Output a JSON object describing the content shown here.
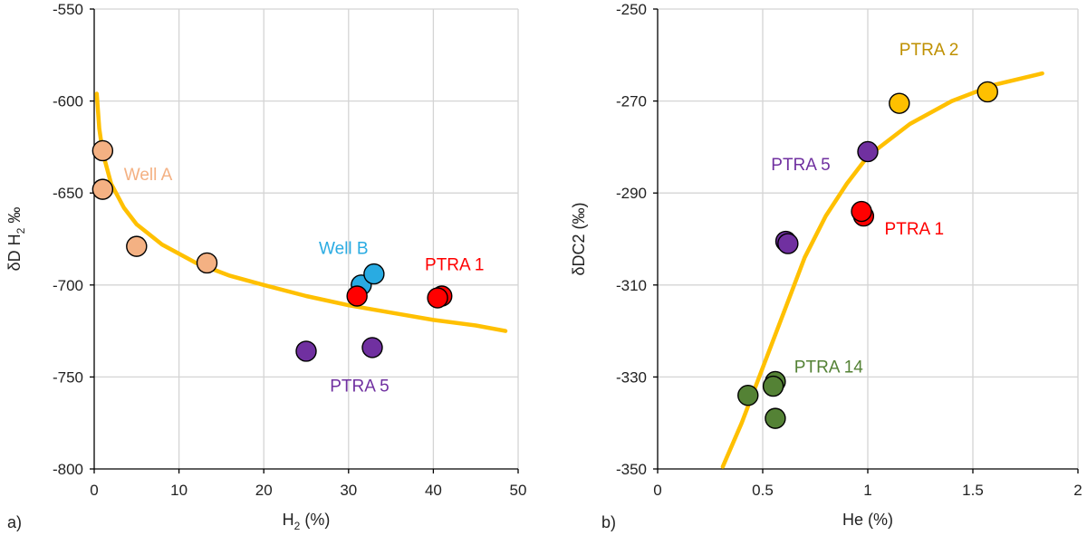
{
  "chart_data": [
    {
      "type": "scatter",
      "panel_label": "a)",
      "xlabel": "H",
      "xlabel_sub": "2",
      "xlabel_suffix": " (%)",
      "ylabel": "δD H",
      "ylabel_sub": "2",
      "ylabel_suffix": " ‰",
      "xlim": [
        0,
        50
      ],
      "ylim": [
        -800,
        -550
      ],
      "xticks": [
        0,
        10,
        20,
        30,
        40,
        50
      ],
      "yticks": [
        -800,
        -750,
        -700,
        -650,
        -600,
        -550
      ],
      "grid": true,
      "series": [
        {
          "name": "Well A",
          "color": "#f4b183",
          "points": [
            [
              1.0,
              -627
            ],
            [
              1.0,
              -648
            ],
            [
              5.0,
              -679
            ],
            [
              13.3,
              -688
            ]
          ]
        },
        {
          "name": "Well B",
          "color": "#29abe2",
          "points": [
            [
              31.5,
              -700
            ],
            [
              33.0,
              -694
            ]
          ]
        },
        {
          "name": "PTRA 1",
          "color": "#ff0000",
          "points": [
            [
              31.0,
              -706
            ],
            [
              41.0,
              -706
            ],
            [
              40.5,
              -707
            ]
          ]
        },
        {
          "name": "PTRA 5",
          "color": "#7030a0",
          "points": [
            [
              25.0,
              -736
            ],
            [
              32.8,
              -734
            ]
          ]
        }
      ],
      "fit_curve": {
        "color": "#ffc000",
        "points": [
          [
            0.3,
            -596
          ],
          [
            0.6,
            -615
          ],
          [
            1.0,
            -628
          ],
          [
            2,
            -645
          ],
          [
            3.5,
            -658
          ],
          [
            5,
            -667
          ],
          [
            8,
            -678
          ],
          [
            12,
            -688
          ],
          [
            16,
            -695
          ],
          [
            20,
            -700
          ],
          [
            25,
            -706
          ],
          [
            30,
            -711
          ],
          [
            35,
            -715
          ],
          [
            40,
            -719
          ],
          [
            45,
            -722
          ],
          [
            48.5,
            -725
          ]
        ]
      },
      "annotations": [
        {
          "text": "Well A",
          "x": 3.5,
          "y": -643,
          "color": "#f4b183"
        },
        {
          "text": "Well B",
          "x": 26.5,
          "y": -683,
          "color": "#29abe2"
        },
        {
          "text": "PTRA 1",
          "x": 39.0,
          "y": -692,
          "color": "#ff0000"
        },
        {
          "text": "PTRA 5",
          "x": 27.8,
          "y": -758,
          "color": "#7030a0"
        }
      ]
    },
    {
      "type": "scatter",
      "panel_label": "b)",
      "xlabel": "He",
      "xlabel_sub": "",
      "xlabel_suffix": " (%)",
      "ylabel": "δDC2",
      "ylabel_sub": "",
      "ylabel_suffix": " (‰)",
      "xlim": [
        0,
        2
      ],
      "ylim": [
        -350,
        -250
      ],
      "xticks": [
        0,
        0.5,
        1,
        1.5,
        2
      ],
      "yticks": [
        -350,
        -330,
        -310,
        -290,
        -270,
        -250
      ],
      "grid": true,
      "series": [
        {
          "name": "PTRA 2",
          "color": "#ffc000",
          "points": [
            [
              1.15,
              -270.5
            ],
            [
              1.57,
              -268
            ]
          ]
        },
        {
          "name": "PTRA 5",
          "color": "#7030a0",
          "points": [
            [
              1.0,
              -281
            ],
            [
              0.61,
              -300.5
            ],
            [
              0.62,
              -301
            ]
          ]
        },
        {
          "name": "PTRA 1",
          "color": "#ff0000",
          "points": [
            [
              0.98,
              -295
            ],
            [
              0.97,
              -294
            ]
          ]
        },
        {
          "name": "PTRA 14",
          "color": "#548235",
          "points": [
            [
              0.56,
              -331
            ],
            [
              0.43,
              -334
            ],
            [
              0.55,
              -332
            ],
            [
              0.56,
              -339
            ]
          ]
        }
      ],
      "fit_curve": {
        "color": "#ffc000",
        "points": [
          [
            0.31,
            -349.5
          ],
          [
            0.4,
            -340
          ],
          [
            0.5,
            -328
          ],
          [
            0.6,
            -316
          ],
          [
            0.7,
            -304
          ],
          [
            0.8,
            -295
          ],
          [
            0.9,
            -288
          ],
          [
            1.0,
            -282
          ],
          [
            1.2,
            -275
          ],
          [
            1.4,
            -270
          ],
          [
            1.6,
            -266.5
          ],
          [
            1.83,
            -264
          ]
        ]
      },
      "annotations": [
        {
          "text": "PTRA 2",
          "x": 1.15,
          "y": -260,
          "color": "#bf9000"
        },
        {
          "text": "PTRA 5",
          "x": 0.54,
          "y": -285,
          "color": "#7030a0"
        },
        {
          "text": "PTRA 1",
          "x": 1.08,
          "y": -299,
          "color": "#ff0000"
        },
        {
          "text": "PTRA 14",
          "x": 0.65,
          "y": -329,
          "color": "#548235"
        }
      ]
    }
  ]
}
